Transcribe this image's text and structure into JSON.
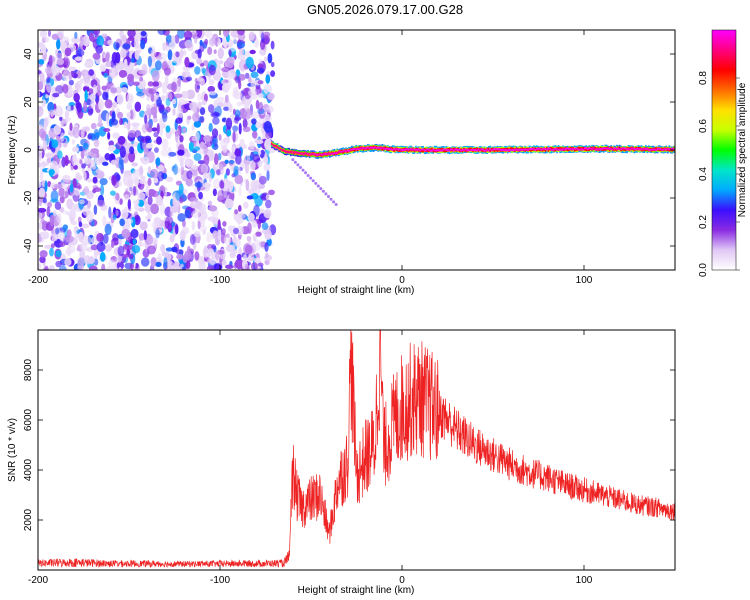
{
  "figure_title": "GN05.2026.079.17.00.G28",
  "chart_data": [
    {
      "type": "heatmap",
      "title": "",
      "xlabel": "Height of straight line (km)",
      "ylabel": "Frequency (Hz)",
      "xlim": [
        -200,
        150
      ],
      "ylim": [
        -50,
        50
      ],
      "x_ticks": [
        "-200",
        "-100",
        "0",
        "100"
      ],
      "x_tick_values": [
        -200,
        -100,
        0,
        100
      ],
      "y_ticks": [
        "-40",
        "-20",
        "0",
        "20",
        "40"
      ],
      "y_tick_values": [
        -40,
        -20,
        0,
        20,
        40
      ],
      "noise_region_x": [
        -200,
        -71
      ],
      "signal_line": {
        "x_start": -72,
        "x_end": 150,
        "frequency_hz": 0,
        "points": [
          {
            "x": -72,
            "f": 2.5,
            "amp": 0.4
          },
          {
            "x": -65,
            "f": -0.5,
            "amp": 0.55
          },
          {
            "x": -55,
            "f": -1.5,
            "amp": 0.7
          },
          {
            "x": -45,
            "f": -2.0,
            "amp": 0.85
          },
          {
            "x": -35,
            "f": -1.0,
            "amp": 0.9
          },
          {
            "x": -25,
            "f": 0.5,
            "amp": 0.95
          },
          {
            "x": -15,
            "f": 1.0,
            "amp": 0.9
          },
          {
            "x": -5,
            "f": 0.2,
            "amp": 0.97
          },
          {
            "x": 10,
            "f": 0.0,
            "amp": 1.0
          },
          {
            "x": 40,
            "f": 0.0,
            "amp": 1.0
          },
          {
            "x": 80,
            "f": 0.3,
            "amp": 0.98
          },
          {
            "x": 110,
            "f": 0.5,
            "amp": 0.95
          },
          {
            "x": 150,
            "f": 0.2,
            "amp": 0.9
          }
        ]
      },
      "colorbar": {
        "label": "Normalized spectral amplitude",
        "ticks": [
          "0.0",
          "0.2",
          "0.4",
          "0.6",
          "0.8"
        ],
        "tick_values": [
          0.0,
          0.2,
          0.4,
          0.6,
          0.8
        ],
        "range": [
          0,
          1
        ],
        "colormap": [
          "#ffffff",
          "#e0c8f5",
          "#8a2be2",
          "#3b0fff",
          "#00aaff",
          "#00e6c8",
          "#00ff00",
          "#c8ff00",
          "#ffe000",
          "#ff6a00",
          "#ff0000",
          "#ff0080",
          "#ff00ff"
        ]
      }
    },
    {
      "type": "line",
      "title": "",
      "xlabel": "Height of straight line (km)",
      "ylabel": "SNR (10 * v/v)",
      "xlim": [
        -200,
        150
      ],
      "ylim": [
        0,
        9600
      ],
      "x_ticks": [
        "-200",
        "-100",
        "0",
        "100"
      ],
      "x_tick_values": [
        -200,
        -100,
        0,
        100
      ],
      "y_ticks": [
        "2000",
        "4000",
        "6000",
        "8000"
      ],
      "y_tick_values": [
        2000,
        4000,
        6000,
        8000
      ],
      "color": "#ee2222",
      "series": [
        {
          "x": [
            -200,
            -180,
            -160,
            -140,
            -120,
            -100,
            -80,
            -65,
            -62,
            -60,
            -58,
            -55,
            -50,
            -45,
            -40,
            -35,
            -30,
            -28,
            -25,
            -20,
            -15,
            -12,
            -10,
            -5,
            0,
            5,
            10,
            15,
            20,
            25,
            30,
            40,
            50,
            60,
            70,
            80,
            90,
            100,
            110,
            120,
            130,
            140,
            150
          ],
          "y": [
            250,
            300,
            230,
            220,
            200,
            220,
            230,
            250,
            600,
            4000,
            3000,
            2500,
            2800,
            3000,
            1400,
            3600,
            4200,
            8500,
            3800,
            4500,
            5000,
            9000,
            4800,
            5800,
            6500,
            6800,
            6900,
            6600,
            6300,
            6000,
            5600,
            5000,
            4600,
            4200,
            3900,
            3700,
            3400,
            3200,
            3000,
            2800,
            2600,
            2500,
            2350
          ]
        }
      ]
    }
  ]
}
